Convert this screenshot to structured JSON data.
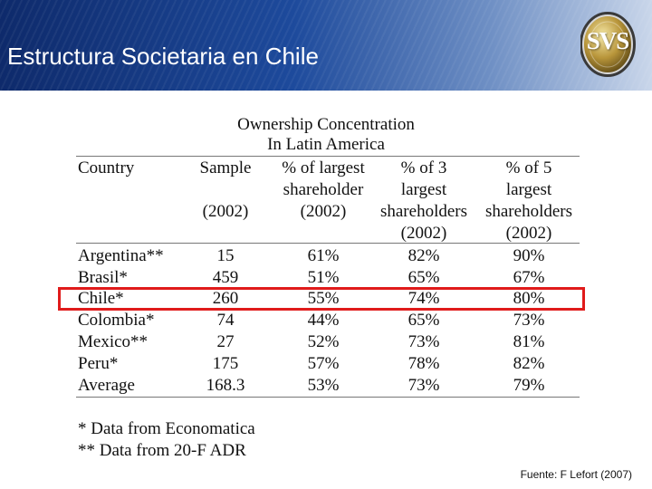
{
  "header": {
    "title": "Estructura Societaria en Chile",
    "logo_text": "SVS"
  },
  "table": {
    "title_line1": "Ownership Concentration",
    "title_line2": "In Latin America",
    "columns": [
      {
        "label_lines": [
          "Country"
        ]
      },
      {
        "label_lines": [
          "Sample",
          "",
          "(2002)"
        ]
      },
      {
        "label_lines": [
          "% of largest",
          "shareholder",
          "(2002)"
        ]
      },
      {
        "label_lines": [
          "% of 3",
          "largest",
          "shareholders",
          "(2002)"
        ]
      },
      {
        "label_lines": [
          "% of 5",
          "largest",
          "shareholders",
          "(2002)"
        ]
      }
    ],
    "rows": [
      {
        "country": "Argentina**",
        "sample": "15",
        "largest": "61%",
        "top3": "82%",
        "top5": "90%"
      },
      {
        "country": "Brasil*",
        "sample": "459",
        "largest": "51%",
        "top3": "65%",
        "top5": "67%"
      },
      {
        "country": "Chile*",
        "sample": "260",
        "largest": "55%",
        "top3": "74%",
        "top5": "80%"
      },
      {
        "country": "Colombia*",
        "sample": "74",
        "largest": "44%",
        "top3": "65%",
        "top5": "73%"
      },
      {
        "country": "Mexico**",
        "sample": "27",
        "largest": "52%",
        "top3": "73%",
        "top5": "81%"
      },
      {
        "country": "Peru*",
        "sample": "175",
        "largest": "57%",
        "top3": "78%",
        "top5": "82%"
      },
      {
        "country": "Average",
        "sample": "168.3",
        "largest": "53%",
        "top3": "73%",
        "top5": "79%"
      }
    ],
    "highlight_color": "#e01b1b"
  },
  "notes": {
    "line1": "* Data from Economatica",
    "line2": "** Data from 20-F  ADR"
  },
  "source": "Fuente: F Lefort (2007)"
}
